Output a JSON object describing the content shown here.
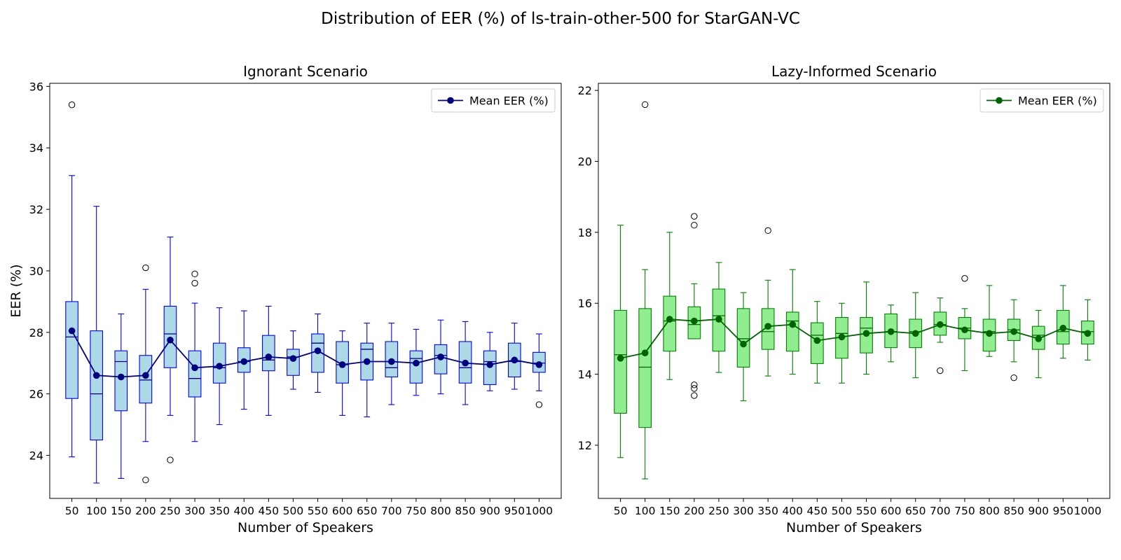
{
  "suptitle": "Distribution of EER (%) of ls-train-other-500 for StarGAN-VC",
  "chart_data": [
    {
      "type": "box",
      "title": "Ignorant Scenario",
      "xlabel": "Number of Speakers",
      "ylabel": "EER (%)",
      "ylim": [
        22.6,
        36.1
      ],
      "yticks": [
        24,
        26,
        28,
        30,
        32,
        34,
        36
      ],
      "legend": {
        "label": "Mean EER (%)",
        "placement": "top-right"
      },
      "colors": {
        "box_fill": "#add8e6",
        "box_edge": "#0000ff",
        "median": "#000080",
        "mean_line": "#000080"
      },
      "categories": [
        "50",
        "100",
        "150",
        "200",
        "250",
        "300",
        "350",
        "400",
        "450",
        "500",
        "550",
        "600",
        "650",
        "700",
        "750",
        "800",
        "850",
        "900",
        "950",
        "1000"
      ],
      "boxes": [
        {
          "whislo": 23.95,
          "q1": 25.85,
          "med": 27.85,
          "q3": 29.0,
          "whishi": 33.1,
          "mean": 28.05,
          "fliers": [
            35.4
          ]
        },
        {
          "whislo": 23.1,
          "q1": 24.5,
          "med": 26.0,
          "q3": 28.05,
          "whishi": 32.1,
          "mean": 26.6,
          "fliers": []
        },
        {
          "whislo": 23.25,
          "q1": 25.45,
          "med": 27.05,
          "q3": 27.4,
          "whishi": 28.6,
          "mean": 26.55,
          "fliers": []
        },
        {
          "whislo": 24.45,
          "q1": 25.7,
          "med": 26.45,
          "q3": 27.25,
          "whishi": 29.4,
          "mean": 26.6,
          "fliers": [
            30.1,
            23.2
          ]
        },
        {
          "whislo": 25.3,
          "q1": 26.85,
          "med": 27.95,
          "q3": 28.85,
          "whishi": 31.1,
          "mean": 27.75,
          "fliers": [
            23.85
          ]
        },
        {
          "whislo": 24.45,
          "q1": 25.9,
          "med": 26.5,
          "q3": 27.4,
          "whishi": 28.95,
          "mean": 26.85,
          "fliers": [
            29.9,
            29.6
          ]
        },
        {
          "whislo": 25.0,
          "q1": 26.35,
          "med": 26.85,
          "q3": 27.65,
          "whishi": 28.8,
          "mean": 26.9,
          "fliers": []
        },
        {
          "whislo": 25.5,
          "q1": 26.7,
          "med": 27.05,
          "q3": 27.5,
          "whishi": 28.7,
          "mean": 27.05,
          "fliers": []
        },
        {
          "whislo": 25.3,
          "q1": 26.75,
          "med": 27.1,
          "q3": 27.9,
          "whishi": 28.85,
          "mean": 27.2,
          "fliers": []
        },
        {
          "whislo": 26.15,
          "q1": 26.6,
          "med": 27.2,
          "q3": 27.45,
          "whishi": 28.05,
          "mean": 27.15,
          "fliers": []
        },
        {
          "whislo": 26.05,
          "q1": 26.7,
          "med": 27.65,
          "q3": 27.95,
          "whishi": 28.6,
          "mean": 27.4,
          "fliers": []
        },
        {
          "whislo": 25.3,
          "q1": 26.35,
          "med": 26.95,
          "q3": 27.7,
          "whishi": 28.05,
          "mean": 26.95,
          "fliers": []
        },
        {
          "whislo": 25.25,
          "q1": 26.45,
          "med": 27.45,
          "q3": 27.65,
          "whishi": 28.3,
          "mean": 27.05,
          "fliers": []
        },
        {
          "whislo": 25.65,
          "q1": 26.55,
          "med": 26.85,
          "q3": 27.7,
          "whishi": 28.3,
          "mean": 27.05,
          "fliers": []
        },
        {
          "whislo": 25.95,
          "q1": 26.35,
          "med": 27.15,
          "q3": 27.4,
          "whishi": 28.1,
          "mean": 27.0,
          "fliers": []
        },
        {
          "whislo": 26.0,
          "q1": 26.65,
          "med": 27.25,
          "q3": 27.6,
          "whishi": 28.4,
          "mean": 27.2,
          "fliers": []
        },
        {
          "whislo": 25.65,
          "q1": 26.35,
          "med": 26.85,
          "q3": 27.7,
          "whishi": 28.35,
          "mean": 27.0,
          "fliers": []
        },
        {
          "whislo": 26.1,
          "q1": 26.3,
          "med": 27.05,
          "q3": 27.4,
          "whishi": 28.0,
          "mean": 26.95,
          "fliers": []
        },
        {
          "whislo": 26.15,
          "q1": 26.55,
          "med": 27.05,
          "q3": 27.65,
          "whishi": 28.3,
          "mean": 27.1,
          "fliers": []
        },
        {
          "whislo": 26.1,
          "q1": 26.7,
          "med": 27.0,
          "q3": 27.35,
          "whishi": 27.95,
          "mean": 26.95,
          "fliers": [
            25.65
          ]
        }
      ]
    },
    {
      "type": "box",
      "title": "Lazy-Informed Scenario",
      "xlabel": "Number of Speakers",
      "ylabel": "",
      "ylim": [
        10.5,
        22.2
      ],
      "yticks": [
        12,
        14,
        16,
        18,
        20,
        22
      ],
      "legend": {
        "label": "Mean EER (%)",
        "placement": "top-right"
      },
      "colors": {
        "box_fill": "#90ee90",
        "box_edge": "#008000",
        "median": "#006400",
        "mean_line": "#006400"
      },
      "categories": [
        "50",
        "100",
        "150",
        "200",
        "250",
        "300",
        "350",
        "400",
        "450",
        "500",
        "550",
        "600",
        "650",
        "700",
        "750",
        "800",
        "850",
        "900",
        "950",
        "1000"
      ],
      "boxes": [
        {
          "whislo": 11.65,
          "q1": 12.9,
          "med": 14.55,
          "q3": 15.8,
          "whishi": 18.2,
          "mean": 14.45,
          "fliers": []
        },
        {
          "whislo": 11.05,
          "q1": 12.5,
          "med": 14.2,
          "q3": 15.85,
          "whishi": 16.95,
          "mean": 14.6,
          "fliers": [
            21.6
          ]
        },
        {
          "whislo": 13.85,
          "q1": 14.65,
          "med": 15.5,
          "q3": 16.2,
          "whishi": 18.0,
          "mean": 15.55,
          "fliers": []
        },
        {
          "whislo": 15.0,
          "q1": 15.0,
          "med": 15.4,
          "q3": 15.9,
          "whishi": 16.55,
          "mean": 15.5,
          "fliers": [
            18.45,
            18.2,
            13.7,
            13.6,
            13.4
          ]
        },
        {
          "whislo": 14.05,
          "q1": 14.65,
          "med": 15.65,
          "q3": 16.4,
          "whishi": 17.15,
          "mean": 15.55,
          "fliers": []
        },
        {
          "whislo": 13.25,
          "q1": 14.2,
          "med": 15.0,
          "q3": 15.85,
          "whishi": 16.3,
          "mean": 14.85,
          "fliers": []
        },
        {
          "whislo": 13.95,
          "q1": 14.7,
          "med": 15.2,
          "q3": 15.85,
          "whishi": 16.65,
          "mean": 15.35,
          "fliers": [
            18.05
          ]
        },
        {
          "whislo": 14.0,
          "q1": 14.65,
          "med": 15.5,
          "q3": 15.75,
          "whishi": 16.95,
          "mean": 15.4,
          "fliers": []
        },
        {
          "whislo": 13.75,
          "q1": 14.3,
          "med": 15.1,
          "q3": 15.45,
          "whishi": 16.05,
          "mean": 14.95,
          "fliers": []
        },
        {
          "whislo": 13.75,
          "q1": 14.45,
          "med": 15.15,
          "q3": 15.6,
          "whishi": 16.0,
          "mean": 15.05,
          "fliers": []
        },
        {
          "whislo": 14.0,
          "q1": 14.6,
          "med": 15.3,
          "q3": 15.6,
          "whishi": 16.6,
          "mean": 15.15,
          "fliers": []
        },
        {
          "whislo": 14.35,
          "q1": 14.75,
          "med": 15.2,
          "q3": 15.7,
          "whishi": 15.95,
          "mean": 15.2,
          "fliers": []
        },
        {
          "whislo": 13.9,
          "q1": 14.75,
          "med": 15.2,
          "q3": 15.55,
          "whishi": 16.3,
          "mean": 15.15,
          "fliers": []
        },
        {
          "whislo": 14.9,
          "q1": 15.1,
          "med": 15.4,
          "q3": 15.75,
          "whishi": 16.15,
          "mean": 15.4,
          "fliers": [
            14.1
          ]
        },
        {
          "whislo": 14.1,
          "q1": 15.0,
          "med": 15.3,
          "q3": 15.6,
          "whishi": 15.85,
          "mean": 15.25,
          "fliers": [
            16.7
          ]
        },
        {
          "whislo": 14.5,
          "q1": 14.65,
          "med": 15.2,
          "q3": 15.55,
          "whishi": 16.5,
          "mean": 15.15,
          "fliers": []
        },
        {
          "whislo": 14.35,
          "q1": 14.95,
          "med": 15.25,
          "q3": 15.55,
          "whishi": 16.1,
          "mean": 15.2,
          "fliers": [
            13.9
          ]
        },
        {
          "whislo": 13.9,
          "q1": 14.7,
          "med": 15.1,
          "q3": 15.35,
          "whishi": 15.8,
          "mean": 15.0,
          "fliers": []
        },
        {
          "whislo": 14.45,
          "q1": 14.85,
          "med": 15.2,
          "q3": 15.8,
          "whishi": 16.5,
          "mean": 15.3,
          "fliers": []
        },
        {
          "whislo": 14.4,
          "q1": 14.85,
          "med": 15.2,
          "q3": 15.5,
          "whishi": 16.1,
          "mean": 15.15,
          "fliers": []
        }
      ]
    }
  ]
}
